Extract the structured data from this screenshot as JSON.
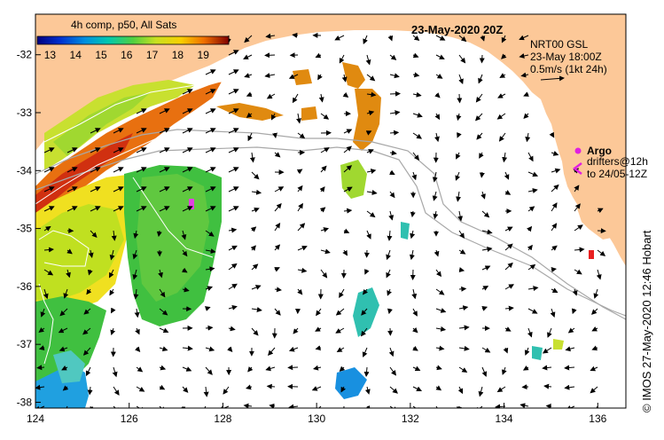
{
  "map": {
    "title": "23-May-2020 20Z",
    "colorbar": {
      "title": "4h comp, p50, All Sats",
      "ticks": [
        "13",
        "14",
        "15",
        "16",
        "17",
        "18",
        "19"
      ],
      "min": 12.5,
      "max": 20
    },
    "axes": {
      "lon_ticks": [
        "124",
        "126",
        "128",
        "130",
        "132",
        "134",
        "136"
      ],
      "lat_ticks": [
        "-32",
        "-33",
        "-34",
        "-35",
        "-36",
        "-37",
        "-38"
      ],
      "lon_range": [
        124,
        136.6
      ],
      "lat_range": [
        -31.3,
        -38.1
      ]
    },
    "legend": {
      "product": "NRT00 GSL",
      "time": "23-May 18:00Z",
      "scale": "0.5m/s (1kt 24h)",
      "argo_label": "Argo",
      "drifter_line1": "drifters@12h",
      "drifter_line2": "to 24/05-12Z"
    },
    "credit": "© IMOS 27-May-2020 12:46 Hobart",
    "colors": {
      "land": "#fcc898",
      "argo": "#e020e0",
      "bathymetry": "#a8a8a8"
    }
  }
}
